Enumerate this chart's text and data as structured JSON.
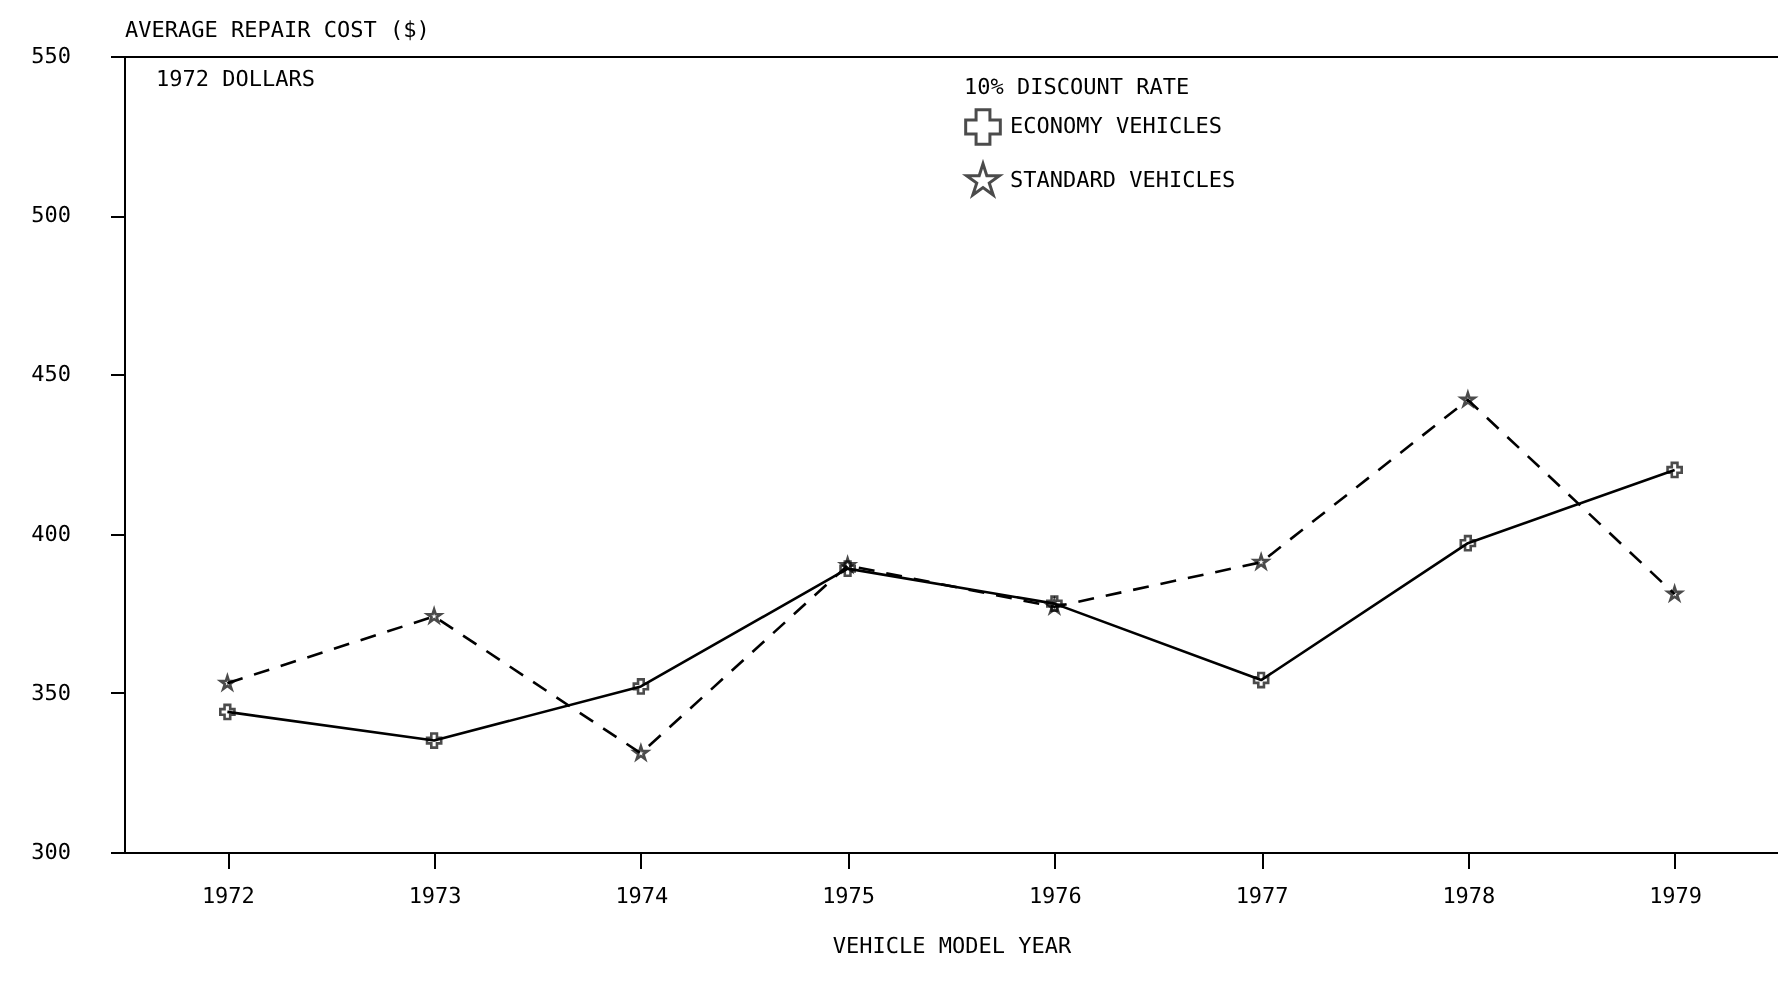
{
  "chart_data": {
    "type": "line",
    "xlabel": "VEHICLE MODEL YEAR",
    "ylabel": "AVERAGE REPAIR COST ($)",
    "legend_title": "10% DISCOUNT RATE",
    "annotations": [
      "1972 DOLLARS"
    ],
    "categories": [
      "1972",
      "1973",
      "1974",
      "1975",
      "1976",
      "1977",
      "1978",
      "1979"
    ],
    "series": [
      {
        "name": "ECONOMY VEHICLES",
        "color": "#000000",
        "marker": "cross",
        "line_style": "solid",
        "values": [
          344,
          335,
          352,
          389,
          378,
          354,
          397,
          420
        ]
      },
      {
        "name": "STANDARD VEHICLES",
        "color": "#000000",
        "marker": "star",
        "line_style": "dashed",
        "values": [
          353,
          374,
          331,
          390,
          377,
          391,
          442,
          381
        ]
      }
    ],
    "ylim": [
      300,
      550
    ],
    "yticks": [
      300,
      350,
      400,
      450,
      500,
      550
    ],
    "grid": false,
    "legend": "top"
  }
}
